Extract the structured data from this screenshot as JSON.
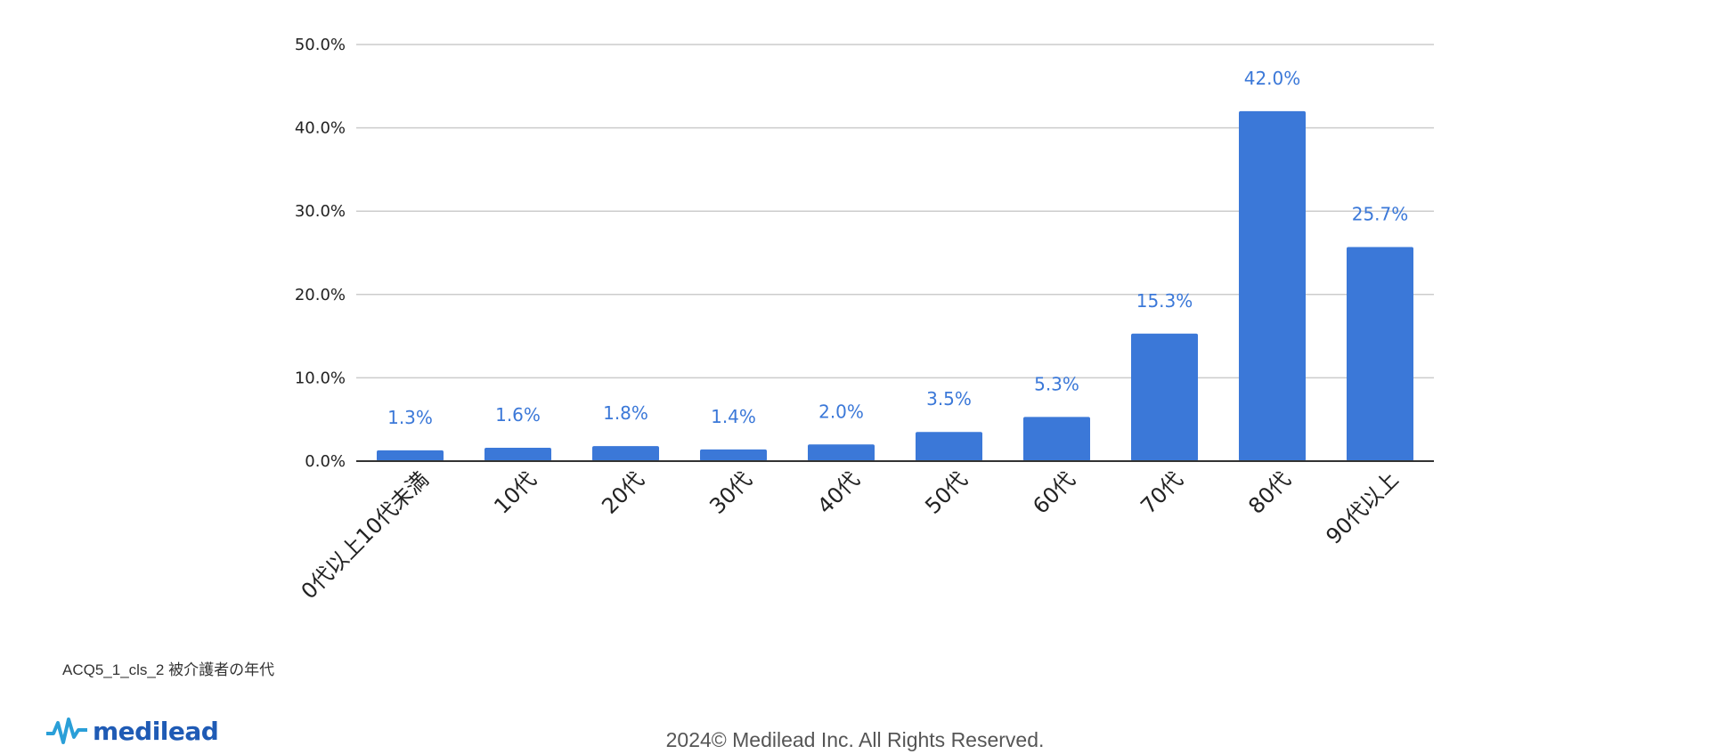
{
  "chart_data": {
    "type": "bar",
    "categories": [
      "0代以上10代未満",
      "10代",
      "20代",
      "30代",
      "40代",
      "50代",
      "60代",
      "70代",
      "80代",
      "90代以上"
    ],
    "values": [
      1.3,
      1.6,
      1.8,
      1.4,
      2.0,
      3.5,
      5.3,
      15.3,
      42.0,
      25.7
    ],
    "value_labels": [
      "1.3%",
      "1.6%",
      "1.8%",
      "1.4%",
      "2.0%",
      "3.5%",
      "5.3%",
      "15.3%",
      "42.0%",
      "25.7%"
    ],
    "yticks": [
      0,
      10,
      20,
      30,
      40,
      50
    ],
    "ytick_labels": [
      "0.0%",
      "10.0%",
      "20.0%",
      "30.0%",
      "40.0%",
      "50.0%"
    ],
    "ylim": [
      0,
      50
    ],
    "grid": true,
    "bar_color": "#3b78d8",
    "title": "",
    "xlabel": "",
    "ylabel": ""
  },
  "caption": "ACQ5_1_cls_2 被介護者の年代",
  "logo": {
    "text": "medilead",
    "icon": "pulse-logo-icon",
    "color": "#1f5bb5"
  },
  "footer": "2024© Medilead Inc. All Rights Reserved."
}
